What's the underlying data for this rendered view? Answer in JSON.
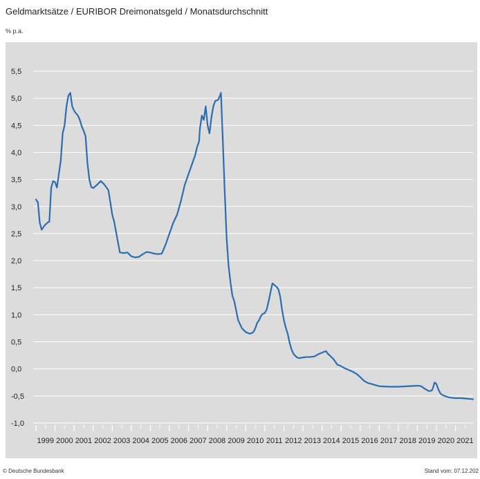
{
  "header": {
    "title": "Geldmarktsätze / EURIBOR Dreimonatsgeld / Monatsdurchschnitt",
    "unit": "% p.a."
  },
  "footer": {
    "source": "© Deutsche Bundesbank",
    "date": "Stand vom: 07.12.202"
  },
  "colors": {
    "line": "#2b6cb0",
    "panel": "#dcdcdc",
    "grid": "#ffffff"
  },
  "chart_data": {
    "type": "line",
    "title": "Geldmarktsätze / EURIBOR Dreimonatsgeld / Monatsdurchschnitt",
    "ylabel": "% p.a.",
    "xlabel": "",
    "ylim": [
      -1.0,
      5.5
    ],
    "xlim": [
      1999.0,
      2021.92
    ],
    "yticks": [
      -1.0,
      -0.5,
      0.0,
      0.5,
      1.0,
      1.5,
      2.0,
      2.5,
      3.0,
      3.5,
      4.0,
      4.5,
      5.0,
      5.5
    ],
    "ytick_labels": [
      "-1,0",
      "-0,5",
      "0,0",
      "0,5",
      "1,0",
      "1,5",
      "2,0",
      "2,5",
      "3,0",
      "3,5",
      "4,0",
      "4,5",
      "5,0",
      "5,5"
    ],
    "xtick_labels": [
      "1999",
      "2000",
      "2001",
      "2002",
      "2003",
      "2004",
      "2005",
      "2006",
      "2007",
      "2008",
      "2009",
      "2010",
      "2011",
      "2012",
      "2013",
      "2014",
      "2015",
      "2016",
      "2017",
      "2018",
      "2019",
      "2020",
      "2021"
    ],
    "grid": true,
    "series": [
      {
        "x": [
          1999.0,
          1999.1,
          1999.2,
          1999.3,
          1999.45,
          1999.6,
          1999.7,
          1999.8,
          1999.9,
          2000.0,
          2000.1,
          2000.2,
          2000.3,
          2000.4,
          2000.5,
          2000.6,
          2000.7,
          2000.8,
          2000.9,
          2001.0,
          2001.1,
          2001.2,
          2001.3,
          2001.4,
          2001.5,
          2001.6,
          2001.7,
          2001.8,
          2001.9,
          2002.0,
          2002.2,
          2002.4,
          2002.6,
          2002.8,
          2003.0,
          2003.1,
          2003.2,
          2003.4,
          2003.6,
          2003.8,
          2004.0,
          2004.2,
          2004.4,
          2004.6,
          2004.8,
          2005.0,
          2005.2,
          2005.4,
          2005.6,
          2005.8,
          2006.0,
          2006.2,
          2006.4,
          2006.6,
          2006.8,
          2007.0,
          2007.2,
          2007.35,
          2007.45,
          2007.55,
          2007.6,
          2007.7,
          2007.8,
          2007.9,
          2008.0,
          2008.1,
          2008.2,
          2008.3,
          2008.4,
          2008.55,
          2008.65,
          2008.7,
          2008.8,
          2008.9,
          2009.0,
          2009.1,
          2009.2,
          2009.3,
          2009.4,
          2009.6,
          2009.8,
          2010.0,
          2010.2,
          2010.3,
          2010.4,
          2010.5,
          2010.6,
          2010.7,
          2010.8,
          2010.9,
          2011.0,
          2011.1,
          2011.2,
          2011.3,
          2011.4,
          2011.5,
          2011.6,
          2011.7,
          2011.8,
          2011.9,
          2012.0,
          2012.1,
          2012.2,
          2012.3,
          2012.4,
          2012.5,
          2012.6,
          2012.7,
          2012.8,
          2013.0,
          2013.2,
          2013.4,
          2013.6,
          2013.8,
          2014.0,
          2014.2,
          2014.3,
          2014.4,
          2014.6,
          2014.8,
          2015.0,
          2015.2,
          2015.4,
          2015.6,
          2015.8,
          2016.0,
          2016.2,
          2016.4,
          2016.6,
          2016.8,
          2017.0,
          2017.5,
          2018.0,
          2018.5,
          2019.0,
          2019.2,
          2019.4,
          2019.6,
          2019.75,
          2019.8,
          2019.9,
          2020.0,
          2020.1,
          2020.2,
          2020.3,
          2020.5,
          2020.7,
          2021.0,
          2021.3,
          2021.6,
          2021.92
        ],
        "y": [
          3.13,
          3.08,
          2.7,
          2.57,
          2.65,
          2.7,
          2.72,
          3.35,
          3.47,
          3.45,
          3.35,
          3.6,
          3.85,
          4.35,
          4.5,
          4.85,
          5.05,
          5.1,
          4.85,
          4.77,
          4.72,
          4.68,
          4.6,
          4.48,
          4.4,
          4.3,
          3.8,
          3.5,
          3.36,
          3.34,
          3.4,
          3.47,
          3.4,
          3.3,
          2.85,
          2.72,
          2.53,
          2.15,
          2.14,
          2.15,
          2.08,
          2.06,
          2.07,
          2.12,
          2.16,
          2.15,
          2.13,
          2.12,
          2.13,
          2.3,
          2.5,
          2.7,
          2.85,
          3.1,
          3.4,
          3.6,
          3.8,
          3.95,
          4.1,
          4.2,
          4.45,
          4.68,
          4.6,
          4.85,
          4.5,
          4.35,
          4.65,
          4.85,
          4.95,
          4.97,
          5.05,
          5.1,
          4.2,
          3.25,
          2.4,
          1.9,
          1.6,
          1.35,
          1.25,
          0.9,
          0.75,
          0.68,
          0.65,
          0.66,
          0.68,
          0.75,
          0.85,
          0.9,
          0.98,
          1.02,
          1.03,
          1.1,
          1.25,
          1.42,
          1.58,
          1.55,
          1.52,
          1.48,
          1.35,
          1.1,
          0.9,
          0.76,
          0.65,
          0.48,
          0.36,
          0.28,
          0.24,
          0.21,
          0.2,
          0.21,
          0.22,
          0.22,
          0.23,
          0.27,
          0.3,
          0.33,
          0.28,
          0.25,
          0.18,
          0.08,
          0.05,
          0.01,
          -0.02,
          -0.05,
          -0.09,
          -0.15,
          -0.22,
          -0.26,
          -0.28,
          -0.3,
          -0.32,
          -0.33,
          -0.33,
          -0.32,
          -0.31,
          -0.32,
          -0.37,
          -0.41,
          -0.4,
          -0.37,
          -0.25,
          -0.28,
          -0.38,
          -0.45,
          -0.48,
          -0.51,
          -0.53,
          -0.54,
          -0.54,
          -0.55,
          -0.56
        ]
      }
    ]
  }
}
